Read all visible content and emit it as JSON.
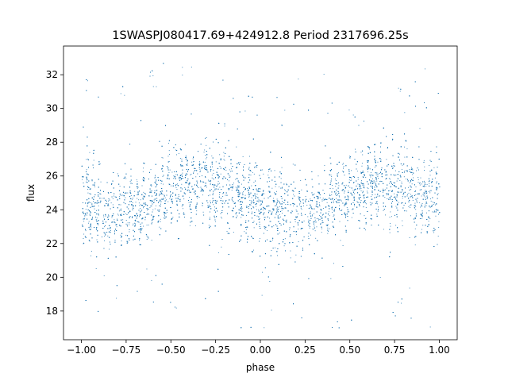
{
  "chart_data": {
    "type": "scatter",
    "title": "1SWASPJ080417.69+424912.8 Period 2317696.25s",
    "xlabel": "phase",
    "ylabel": "flux",
    "xlim": [
      -1.1,
      1.1
    ],
    "ylim": [
      16.3,
      33.7
    ],
    "xticks": [
      -1.0,
      -0.75,
      -0.5,
      -0.25,
      0.0,
      0.25,
      0.5,
      0.75,
      1.0
    ],
    "xtick_labels": [
      "−1.00",
      "−0.75",
      "−0.50",
      "−0.25",
      "0.00",
      "0.25",
      "0.50",
      "0.75",
      "1.00"
    ],
    "yticks": [
      18,
      20,
      22,
      24,
      26,
      28,
      30,
      32
    ],
    "ytick_labels": [
      "18",
      "20",
      "22",
      "24",
      "26",
      "28",
      "30",
      "32"
    ],
    "grid": false,
    "legend": "none",
    "marker_color": "#1f77b4",
    "series": [
      {
        "x_range": [
          -1.0,
          1.0
        ],
        "approx_points": 9000,
        "baseline_flux": 24.8,
        "band_trend": [
          {
            "x": -1.0,
            "center": 25.0,
            "spread": 2.2
          },
          {
            "x": -0.95,
            "center": 24.3,
            "spread": 2.4
          },
          {
            "x": -0.85,
            "center": 24.0,
            "spread": 2.2
          },
          {
            "x": -0.75,
            "center": 24.0,
            "spread": 1.8
          },
          {
            "x": -0.6,
            "center": 24.4,
            "spread": 1.6
          },
          {
            "x": -0.5,
            "center": 25.4,
            "spread": 1.7
          },
          {
            "x": -0.35,
            "center": 25.6,
            "spread": 1.8
          },
          {
            "x": -0.2,
            "center": 25.4,
            "spread": 2.2
          },
          {
            "x": -0.1,
            "center": 24.6,
            "spread": 2.0
          },
          {
            "x": 0.0,
            "center": 24.4,
            "spread": 2.3
          },
          {
            "x": 0.1,
            "center": 24.0,
            "spread": 2.2
          },
          {
            "x": 0.25,
            "center": 24.0,
            "spread": 1.9
          },
          {
            "x": 0.4,
            "center": 24.4,
            "spread": 1.6
          },
          {
            "x": 0.5,
            "center": 25.2,
            "spread": 1.7
          },
          {
            "x": 0.65,
            "center": 25.6,
            "spread": 1.8
          },
          {
            "x": 0.8,
            "center": 25.4,
            "spread": 2.2
          },
          {
            "x": 0.9,
            "center": 24.8,
            "spread": 2.0
          },
          {
            "x": 1.0,
            "center": 24.6,
            "spread": 2.2
          }
        ]
      }
    ]
  }
}
